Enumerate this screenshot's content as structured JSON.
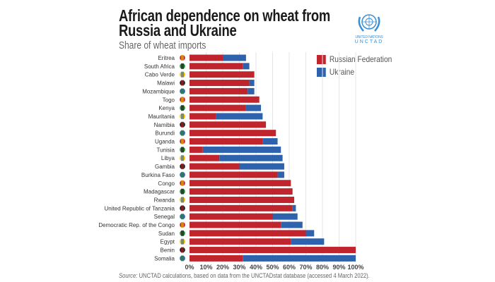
{
  "header": {
    "title_line1": "African dependence on wheat from",
    "title_line2": "Russia and Ukraine",
    "subtitle": "Share of wheat imports"
  },
  "logo": {
    "line1": "UNITED NATIONS",
    "line2": "UNCTAD"
  },
  "source": {
    "label": "Source:",
    "text": " UNCTAD calculations, based on data from the UNCTADstat database (accessed 4 March 2022)."
  },
  "chart_data": {
    "type": "bar",
    "orientation": "horizontal",
    "stacked": true,
    "title": "African dependence on wheat from Russia and Ukraine",
    "subtitle": "Share of wheat imports",
    "xlabel": "",
    "ylabel": "",
    "xlim": [
      0,
      100
    ],
    "x_ticks": [
      "0%",
      "10%",
      "20%",
      "30%",
      "40%",
      "50%",
      "60%",
      "70%",
      "80%",
      "90%",
      "100%"
    ],
    "grid": true,
    "legend_position": "top-right",
    "categories": [
      "Eritrea",
      "South Africa",
      "Cabo Verde",
      "Malawi",
      "Mozambique",
      "Togo",
      "Kenya",
      "Mauritania",
      "Namibia",
      "Burundi",
      "Uganda",
      "Tunisia",
      "Libya",
      "Gambia",
      "Burkina Faso",
      "Congo",
      "Madagascar",
      "Rwanda",
      "United Republic of Tanzania",
      "Senegal",
      "Democratic Rep. of the Congo",
      "Sudan",
      "Egypt",
      "Benin",
      "Somalia"
    ],
    "series": [
      {
        "name": "Russian Federation",
        "color": "#c0242c",
        "values": [
          20,
          32,
          39,
          36,
          35,
          42,
          34,
          16,
          46,
          52,
          44,
          8,
          18,
          30,
          53,
          61,
          62,
          63,
          62,
          50,
          55,
          70,
          61,
          100,
          32
        ]
      },
      {
        "name": "Ukraine",
        "color": "#2f62ad",
        "values": [
          14,
          4,
          0,
          3,
          4,
          0,
          9,
          28,
          0,
          0,
          9,
          47,
          38,
          27,
          4,
          0,
          0,
          0,
          2,
          15,
          13,
          5,
          20,
          0,
          68
        ]
      }
    ]
  }
}
